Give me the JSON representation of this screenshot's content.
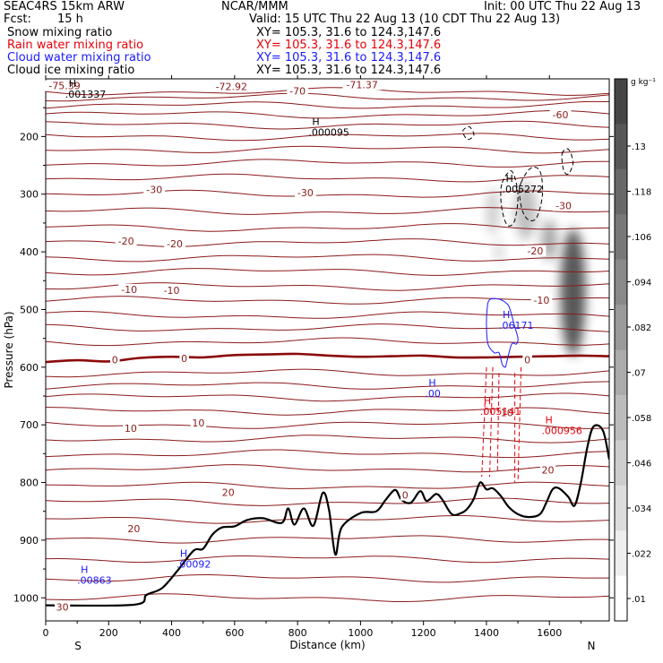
{
  "header": {
    "model": "SEAC4RS 15km ARW",
    "org": "NCAR/MMM",
    "init": "Init: 00 UTC Thu 22 Aug 13",
    "fcst_label": "Fcst:",
    "fcst_value": "15 h",
    "valid": "Valid: 15 UTC Thu 22 Aug 13 (10 CDT Thu 22 Aug 13)"
  },
  "fields": [
    {
      "name": "Snow mixing ratio",
      "xy": "XY= 105.3, 31.6 to 124.3,147.6",
      "color": "#000000"
    },
    {
      "name": "Rain water mixing ratio",
      "xy": "XY= 105.3, 31.6 to 124.3,147.6",
      "color": "#e8000a"
    },
    {
      "name": "Cloud water mixing ratio",
      "xy": "XY= 105.3, 31.6 to 124.3,147.6",
      "color": "#1a1aff"
    },
    {
      "name": "Cloud ice mixing ratio",
      "xy": "XY= 105.3, 31.6 to 124.3,147.6",
      "color": "#000000"
    }
  ],
  "chart_data": {
    "type": "heatmap",
    "xlabel": "Distance (km)",
    "ylabel": "Pressure (hPa)",
    "xlim": [
      0,
      1790
    ],
    "ylim": [
      1040,
      100
    ],
    "x_ticks": [
      "0",
      "200",
      "400",
      "600",
      "800",
      "1000",
      "1200",
      "1400",
      "1600"
    ],
    "y_ticks": [
      "200",
      "300",
      "400",
      "500",
      "600",
      "700",
      "800",
      "900",
      "1000"
    ],
    "x_end_labels": {
      "left": "S",
      "right": "N"
    },
    "colorbar": {
      "unit": "g kg⁻¹",
      "ticks": [
        ".13",
        ".118",
        ".106",
        ".094",
        ".082",
        ".07",
        ".058",
        ".046",
        ".034",
        ".022",
        ".01"
      ]
    },
    "temperature_labels": [
      {
        "text": "-75.39",
        "x": 60,
        "p": 112
      },
      {
        "text": "-72.92",
        "x": 590,
        "p": 113
      },
      {
        "text": "-71.37",
        "x": 1005,
        "p": 110
      },
      {
        "text": "-70",
        "x": 800,
        "p": 121
      },
      {
        "text": "-60",
        "x": 1635,
        "p": 162
      },
      {
        "text": "-30",
        "x": 345,
        "p": 292
      },
      {
        "text": "-30",
        "x": 825,
        "p": 297
      },
      {
        "text": "-30",
        "x": 1645,
        "p": 320
      },
      {
        "text": "-20",
        "x": 255,
        "p": 381
      },
      {
        "text": "-20",
        "x": 410,
        "p": 386
      },
      {
        "text": "-20",
        "x": 1555,
        "p": 398
      },
      {
        "text": "-10",
        "x": 265,
        "p": 465
      },
      {
        "text": "-10",
        "x": 400,
        "p": 467
      },
      {
        "text": "-10",
        "x": 1575,
        "p": 484
      },
      {
        "text": "0",
        "x": 220,
        "p": 587
      },
      {
        "text": "0",
        "x": 440,
        "p": 585
      },
      {
        "text": "0",
        "x": 1530,
        "p": 587
      },
      {
        "text": "10",
        "x": 270,
        "p": 706
      },
      {
        "text": "10",
        "x": 485,
        "p": 697
      },
      {
        "text": "10",
        "x": 1465,
        "p": 679
      },
      {
        "text": "20",
        "x": 580,
        "p": 817
      },
      {
        "text": "20",
        "x": 280,
        "p": 880
      },
      {
        "text": "20",
        "x": 1595,
        "p": 778
      },
      {
        "text": "0",
        "x": 1142,
        "p": 822
      },
      {
        "text": "30",
        "x": 53,
        "p": 1016
      }
    ],
    "extrema_labels": [
      {
        "mark": "H",
        "value": ".001337",
        "x": 62,
        "p": 120,
        "color": "#000000"
      },
      {
        "mark": "H",
        "value": ".000095",
        "x": 835,
        "p": 186,
        "color": "#000000"
      },
      {
        "mark": "H",
        "value": ".005272",
        "x": 1450,
        "p": 285,
        "color": "#000000"
      },
      {
        "mark": "H",
        "value": ".06171",
        "x": 1440,
        "p": 521,
        "color": "#1a1aff"
      },
      {
        "mark": "H",
        "value": ".00",
        "x": 1205,
        "p": 639,
        "color": "#1a1aff"
      },
      {
        "mark": "H",
        "value": ".005141",
        "x": 1380,
        "p": 670,
        "color": "#e8000a"
      },
      {
        "mark": "H",
        "value": ".000956",
        "x": 1575,
        "p": 704,
        "color": "#e8000a"
      },
      {
        "mark": "H",
        "value": ".00863",
        "x": 100,
        "p": 963,
        "color": "#1a1aff"
      },
      {
        "mark": "H",
        "value": ".00092",
        "x": 415,
        "p": 935,
        "color": "#1a1aff"
      }
    ],
    "terrain_surface": [
      [
        0,
        1013
      ],
      [
        280,
        1012
      ],
      [
        320,
        995
      ],
      [
        370,
        983
      ],
      [
        420,
        952
      ],
      [
        470,
        918
      ],
      [
        500,
        915
      ],
      [
        530,
        890
      ],
      [
        560,
        878
      ],
      [
        600,
        876
      ],
      [
        640,
        865
      ],
      [
        690,
        862
      ],
      [
        750,
        870
      ],
      [
        770,
        845
      ],
      [
        790,
        873
      ],
      [
        820,
        845
      ],
      [
        850,
        875
      ],
      [
        880,
        818
      ],
      [
        900,
        848
      ],
      [
        920,
        925
      ],
      [
        940,
        878
      ],
      [
        1000,
        853
      ],
      [
        1050,
        850
      ],
      [
        1080,
        830
      ],
      [
        1110,
        813
      ],
      [
        1130,
        830
      ],
      [
        1160,
        835
      ],
      [
        1190,
        815
      ],
      [
        1210,
        832
      ],
      [
        1240,
        820
      ],
      [
        1260,
        830
      ],
      [
        1290,
        855
      ],
      [
        1320,
        853
      ],
      [
        1340,
        845
      ],
      [
        1360,
        828
      ],
      [
        1380,
        800
      ],
      [
        1400,
        812
      ],
      [
        1420,
        810
      ],
      [
        1445,
        823
      ],
      [
        1470,
        842
      ],
      [
        1500,
        855
      ],
      [
        1535,
        860
      ],
      [
        1570,
        855
      ],
      [
        1590,
        835
      ],
      [
        1610,
        812
      ],
      [
        1630,
        810
      ],
      [
        1660,
        825
      ],
      [
        1680,
        840
      ],
      [
        1700,
        800
      ],
      [
        1720,
        740
      ],
      [
        1740,
        703
      ],
      [
        1770,
        710
      ],
      [
        1790,
        760
      ]
    ],
    "zero_isotherm": [
      [
        0,
        591
      ],
      [
        100,
        588
      ],
      [
        200,
        590
      ],
      [
        300,
        584
      ],
      [
        400,
        582
      ],
      [
        500,
        583
      ],
      [
        600,
        579
      ],
      [
        700,
        578
      ],
      [
        800,
        577
      ],
      [
        900,
        580
      ],
      [
        1000,
        582
      ],
      [
        1100,
        581
      ],
      [
        1200,
        580
      ],
      [
        1300,
        583
      ],
      [
        1400,
        583
      ],
      [
        1500,
        582
      ],
      [
        1600,
        581
      ],
      [
        1700,
        580
      ],
      [
        1790,
        581
      ]
    ],
    "isotherm_levels": [
      122,
      132,
      146,
      162,
      180,
      200,
      222,
      246,
      272,
      300,
      330,
      358,
      384,
      410,
      434,
      460,
      484,
      510,
      532,
      556,
      610,
      632,
      652,
      676,
      700,
      724,
      750,
      776,
      806,
      834,
      864,
      898,
      932,
      966,
      1000
    ],
    "ice_blobs": [
      {
        "x": 1675,
        "p": 470,
        "rx": 40,
        "rp": 110,
        "q": 0.13
      },
      {
        "x": 1600,
        "p": 380,
        "rx": 25,
        "rp": 35,
        "q": 0.07
      },
      {
        "x": 1525,
        "p": 330,
        "rx": 35,
        "rp": 50,
        "q": 0.05
      },
      {
        "x": 1420,
        "p": 330,
        "rx": 20,
        "rp": 40,
        "q": 0.04
      },
      {
        "x": 1440,
        "p": 400,
        "rx": 15,
        "rp": 20,
        "q": 0.03
      }
    ],
    "cloud_water_contour": [
      [
        1410,
        483
      ],
      [
        1440,
        482
      ],
      [
        1465,
        490
      ],
      [
        1475,
        500
      ],
      [
        1490,
        530
      ],
      [
        1500,
        550
      ],
      [
        1495,
        560
      ],
      [
        1480,
        560
      ],
      [
        1465,
        590
      ],
      [
        1460,
        600
      ],
      [
        1450,
        595
      ],
      [
        1440,
        575
      ],
      [
        1425,
        575
      ],
      [
        1405,
        560
      ],
      [
        1400,
        530
      ],
      [
        1402,
        500
      ]
    ],
    "cloud_ice_contours": [
      [
        [
          1450,
          280
        ],
        [
          1480,
          260
        ],
        [
          1500,
          300
        ],
        [
          1490,
          345
        ],
        [
          1470,
          355
        ],
        [
          1455,
          340
        ],
        [
          1446,
          310
        ]
      ],
      [
        [
          1510,
          280
        ],
        [
          1540,
          255
        ],
        [
          1570,
          260
        ],
        [
          1578,
          300
        ],
        [
          1560,
          340
        ],
        [
          1535,
          345
        ],
        [
          1515,
          330
        ],
        [
          1505,
          300
        ]
      ],
      [
        [
          1640,
          230
        ],
        [
          1660,
          222
        ],
        [
          1675,
          245
        ],
        [
          1660,
          265
        ],
        [
          1645,
          258
        ]
      ],
      [
        [
          1325,
          191
        ],
        [
          1345,
          183
        ],
        [
          1360,
          197
        ],
        [
          1340,
          205
        ]
      ]
    ],
    "rain_lines": [
      [
        [
          1400,
          600
        ],
        [
          1385,
          790
        ]
      ],
      [
        [
          1420,
          600
        ],
        [
          1410,
          790
        ]
      ],
      [
        [
          1440,
          610
        ],
        [
          1435,
          780
        ]
      ],
      [
        [
          1490,
          610
        ],
        [
          1490,
          800
        ]
      ],
      [
        [
          1510,
          600
        ],
        [
          1500,
          800
        ]
      ]
    ],
    "colors": {
      "isotherm": "#8b1a1a",
      "zero_isotherm": "#8b0a0a",
      "terrain": "#000000",
      "cloud_water": "#1a1aff",
      "rain": "#e8000a"
    }
  }
}
